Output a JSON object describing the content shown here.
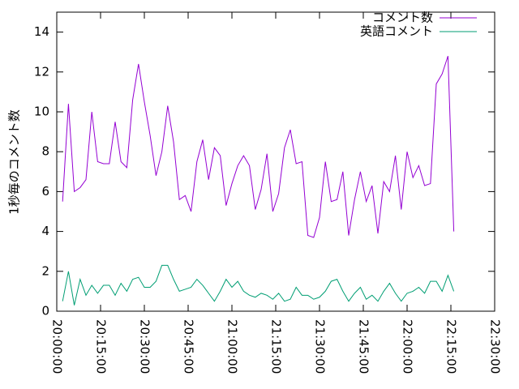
{
  "chart_data": {
    "type": "line",
    "ylabel": "1秒毎のコメント数",
    "x": [
      "20:02:00",
      "20:04:00",
      "20:06:00",
      "20:08:00",
      "20:10:00",
      "20:12:00",
      "20:14:00",
      "20:16:00",
      "20:18:00",
      "20:20:00",
      "20:22:00",
      "20:24:00",
      "20:26:00",
      "20:28:00",
      "20:30:00",
      "20:32:00",
      "20:34:00",
      "20:36:00",
      "20:38:00",
      "20:40:00",
      "20:42:00",
      "20:44:00",
      "20:46:00",
      "20:48:00",
      "20:50:00",
      "20:52:00",
      "20:54:00",
      "20:56:00",
      "20:58:00",
      "21:00:00",
      "21:02:00",
      "21:04:00",
      "21:06:00",
      "21:08:00",
      "21:10:00",
      "21:12:00",
      "21:14:00",
      "21:16:00",
      "21:18:00",
      "21:20:00",
      "21:22:00",
      "21:24:00",
      "21:26:00",
      "21:28:00",
      "21:30:00",
      "21:32:00",
      "21:34:00",
      "21:36:00",
      "21:38:00",
      "21:40:00",
      "21:42:00",
      "21:44:00",
      "21:46:00",
      "21:48:00",
      "21:50:00",
      "21:52:00",
      "21:54:00",
      "21:56:00",
      "21:58:00",
      "22:00:00",
      "22:02:00",
      "22:04:00",
      "22:06:00",
      "22:08:00",
      "22:10:00",
      "22:12:00",
      "22:14:00",
      "22:16:00"
    ],
    "series": [
      {
        "name": "コメント数",
        "color": "#9400d3",
        "values": [
          5.5,
          10.4,
          6.0,
          6.2,
          6.6,
          10.0,
          7.5,
          7.4,
          7.4,
          9.5,
          7.5,
          7.2,
          10.6,
          12.4,
          10.5,
          8.8,
          6.8,
          8.0,
          10.3,
          8.5,
          5.6,
          5.8,
          5.0,
          7.5,
          8.6,
          6.6,
          8.2,
          7.8,
          5.3,
          6.4,
          7.3,
          7.8,
          7.3,
          5.1,
          6.1,
          7.9,
          5.0,
          5.9,
          8.2,
          9.1,
          7.4,
          7.5,
          3.8,
          3.7,
          4.7,
          7.5,
          5.5,
          5.6,
          7.0,
          3.8,
          5.6,
          7.0,
          5.5,
          6.3,
          3.9,
          6.5,
          6.0,
          7.8,
          5.1,
          8.0,
          6.7,
          7.3,
          6.3,
          6.4,
          11.4,
          11.9,
          12.8,
          4.0
        ]
      },
      {
        "name": "英語コメント",
        "color": "#009e73",
        "values": [
          0.5,
          2.0,
          0.3,
          1.6,
          0.8,
          1.3,
          0.9,
          1.3,
          1.3,
          0.8,
          1.4,
          1.0,
          1.6,
          1.7,
          1.2,
          1.2,
          1.5,
          2.3,
          2.3,
          1.6,
          1.0,
          1.1,
          1.2,
          1.6,
          1.3,
          0.9,
          0.5,
          1.0,
          1.6,
          1.2,
          1.5,
          1.0,
          0.8,
          0.7,
          0.9,
          0.8,
          0.6,
          0.9,
          0.5,
          0.6,
          1.2,
          0.8,
          0.8,
          0.6,
          0.7,
          1.0,
          1.5,
          1.6,
          1.0,
          0.5,
          0.9,
          1.2,
          0.6,
          0.8,
          0.5,
          1.0,
          1.4,
          0.9,
          0.5,
          0.9,
          1.0,
          1.2,
          0.9,
          1.5,
          1.5,
          1.0,
          1.8,
          1.0
        ]
      }
    ],
    "xlim": [
      "20:00:00",
      "22:30:00"
    ],
    "xticks": [
      "20:00:00",
      "20:15:00",
      "20:30:00",
      "20:45:00",
      "21:00:00",
      "21:15:00",
      "21:30:00",
      "21:45:00",
      "22:00:00",
      "22:15:00",
      "22:30:00"
    ],
    "ylim": [
      0,
      15
    ],
    "yticks": [
      0,
      2,
      4,
      6,
      8,
      10,
      12,
      14
    ],
    "legend": "top-right"
  }
}
